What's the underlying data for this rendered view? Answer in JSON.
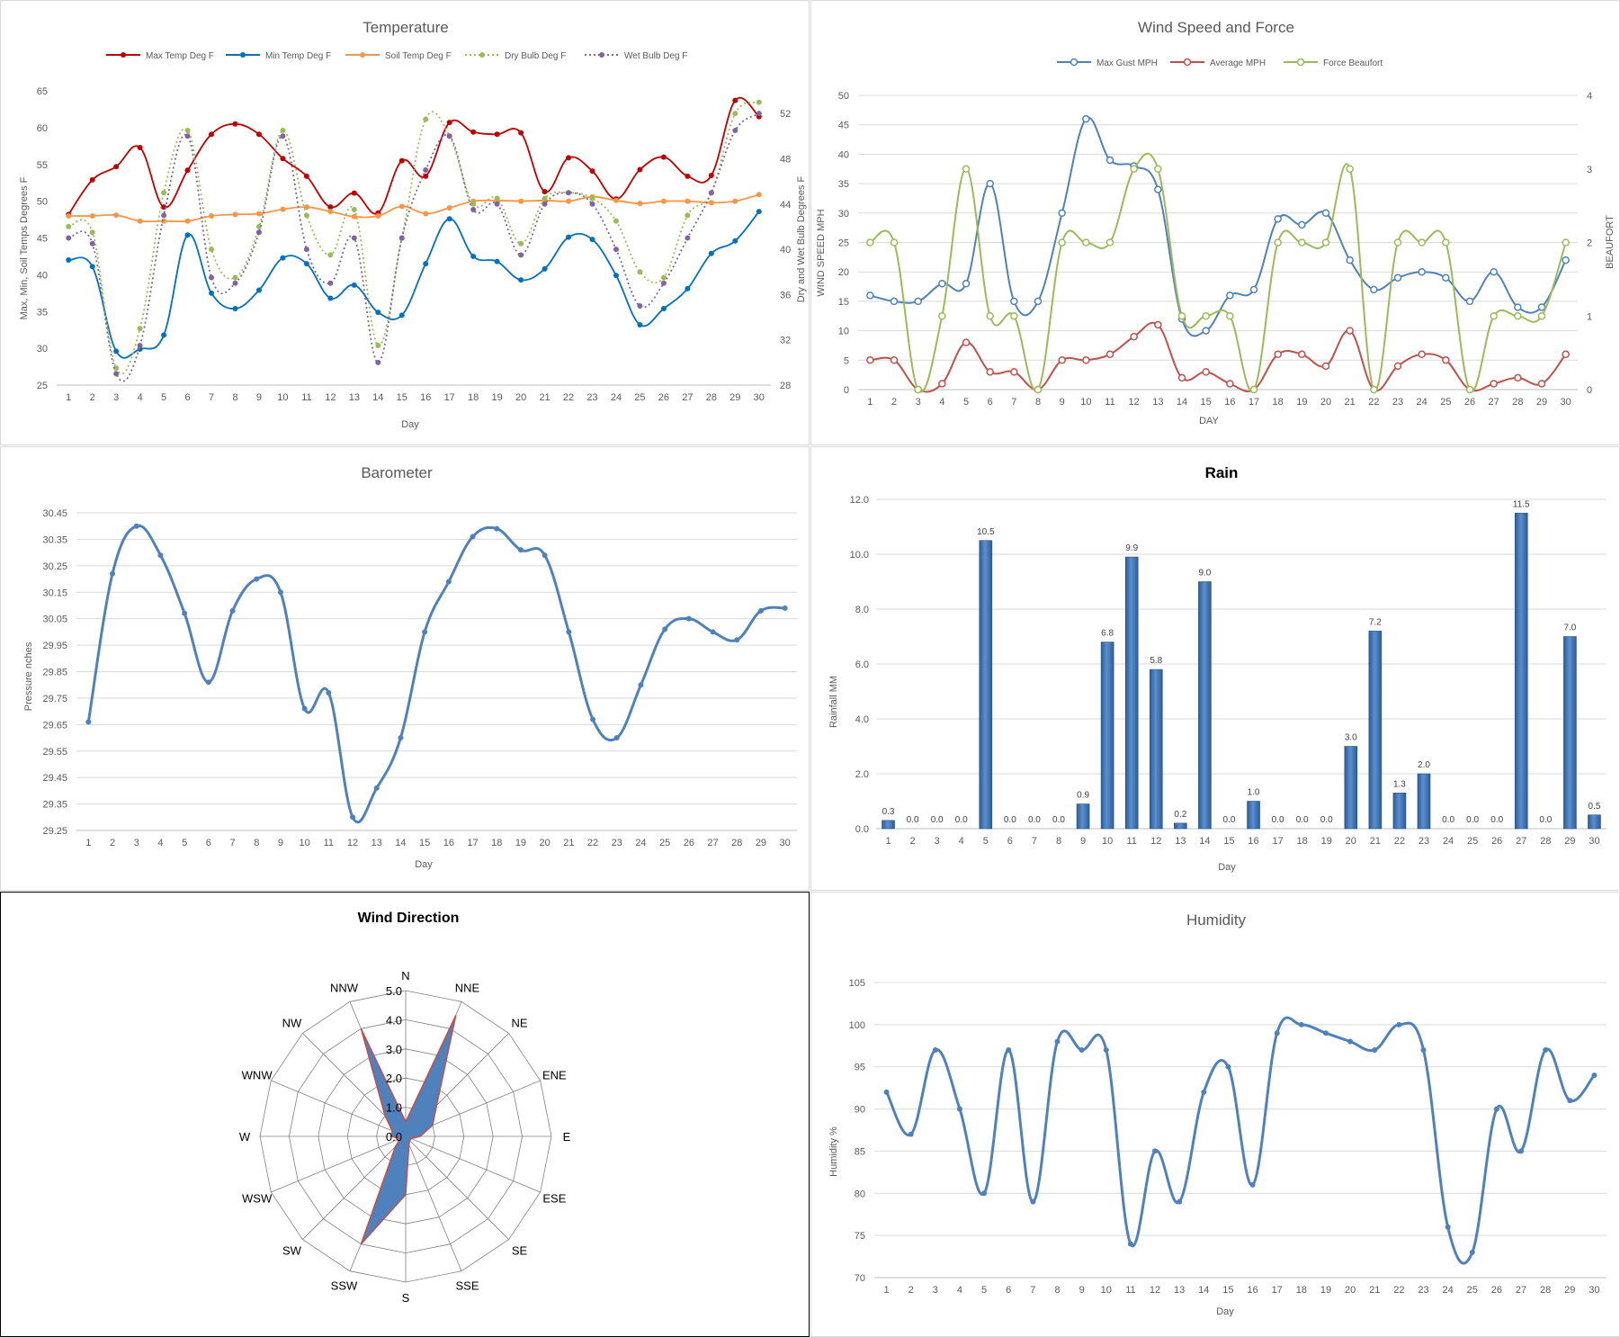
{
  "charts": {
    "temperature": {
      "title": "Temperature",
      "xlabel": "Day",
      "ylabel_left": "Max, Min, Soil Temps Degrees F",
      "ylabel_right": "Dry and Wet Bulb Degrees F"
    },
    "wind": {
      "title": "Wind Speed and Force",
      "xlabel": "DAY",
      "ylabel_left": "WIND SPEED MPH",
      "ylabel_right": "BEAUFORT"
    },
    "barometer": {
      "title": "Barometer",
      "xlabel": "Day",
      "ylabel": "Pressure nches"
    },
    "rain": {
      "title": "Rain",
      "xlabel": "Day",
      "ylabel": "Rainfall MM"
    },
    "wind_direction": {
      "title": "Wind Direction"
    },
    "humidity": {
      "title": "Humidity",
      "xlabel": "Day",
      "ylabel": "Humidity %"
    }
  },
  "chart_data": [
    {
      "id": "temperature",
      "type": "line",
      "title": "Temperature",
      "xlabel": "Day",
      "ylabel": "Max, Min, Soil Temps Degrees F",
      "y2label": "Dry and Wet Bulb Degrees F",
      "x": [
        1,
        2,
        3,
        4,
        5,
        6,
        7,
        8,
        9,
        10,
        11,
        12,
        13,
        14,
        15,
        16,
        17,
        18,
        19,
        20,
        21,
        22,
        23,
        24,
        25,
        26,
        27,
        28,
        29,
        30
      ],
      "ylim": [
        25,
        65
      ],
      "yticks": [
        25,
        30,
        35,
        40,
        45,
        50,
        55,
        60,
        65
      ],
      "y2lim": [
        28,
        54
      ],
      "y2ticks": [
        28,
        32,
        36,
        40,
        44,
        48,
        52
      ],
      "legend": "top",
      "grid": false,
      "series": [
        {
          "name": "Max Temp Deg F",
          "axis": "left",
          "color": "#c00000",
          "dash": false,
          "values": [
            48.2,
            52.9,
            54.7,
            57.3,
            49.2,
            54.2,
            59.1,
            60.5,
            59.1,
            55.8,
            53.4,
            49.2,
            51.1,
            48.4,
            55.5,
            53.4,
            60.7,
            59.4,
            59.1,
            59.3,
            51.3,
            55.9,
            54.1,
            50.3,
            54.3,
            56.0,
            53.4,
            53.5,
            63.7,
            61.5
          ]
        },
        {
          "name": "Min Temp Deg F",
          "axis": "left",
          "color": "#0070c0",
          "dash": false,
          "values": [
            42.0,
            41.1,
            29.6,
            29.9,
            31.8,
            45.4,
            37.5,
            35.4,
            37.9,
            42.3,
            41.5,
            36.8,
            38.6,
            34.9,
            34.5,
            41.5,
            47.6,
            42.5,
            41.8,
            39.3,
            40.8,
            45.1,
            44.8,
            39.9,
            33.2,
            35.4,
            38.1,
            42.9,
            44.6,
            48.6
          ]
        },
        {
          "name": "Soil Temp Deg F",
          "axis": "left",
          "color": "#f79646",
          "dash": false,
          "values": [
            48.0,
            48.0,
            48.1,
            47.3,
            47.3,
            47.3,
            48.0,
            48.2,
            48.3,
            48.9,
            49.2,
            48.6,
            47.9,
            48.0,
            49.3,
            48.3,
            49.1,
            50.0,
            50.1,
            50.0,
            50.1,
            50.0,
            50.6,
            50.1,
            49.7,
            50.0,
            50.0,
            49.8,
            50.0,
            50.9
          ]
        },
        {
          "name": "Dry Bulb Deg F",
          "axis": "right",
          "color": "#9bbb59",
          "dash": true,
          "values": [
            42.0,
            41.5,
            29.5,
            33.0,
            45.0,
            50.5,
            40.0,
            37.5,
            42.0,
            50.5,
            43.0,
            39.5,
            43.5,
            31.5,
            41.0,
            51.5,
            50.0,
            44.0,
            44.5,
            40.5,
            44.5,
            45.0,
            44.5,
            42.5,
            38.0,
            37.5,
            43.0,
            45.0,
            52.0,
            53.0
          ]
        },
        {
          "name": "Wet Bulb Deg F",
          "axis": "right",
          "color": "#8064a2",
          "dash": true,
          "values": [
            41.0,
            40.5,
            29.0,
            31.5,
            43.0,
            50.0,
            37.5,
            37.0,
            41.5,
            50.0,
            40.0,
            37.0,
            41.0,
            30.0,
            41.0,
            47.0,
            50.0,
            43.5,
            44.0,
            39.5,
            44.0,
            45.0,
            44.0,
            40.0,
            35.0,
            37.0,
            41.0,
            45.0,
            50.5,
            52.0
          ]
        }
      ]
    },
    {
      "id": "wind",
      "type": "line",
      "title": "Wind Speed and Force",
      "xlabel": "DAY",
      "ylabel": "WIND SPEED MPH",
      "y2label": "BEAUFORT",
      "x": [
        1,
        2,
        3,
        4,
        5,
        6,
        7,
        8,
        9,
        10,
        11,
        12,
        13,
        14,
        15,
        16,
        17,
        18,
        19,
        20,
        21,
        22,
        23,
        24,
        25,
        26,
        27,
        28,
        29,
        30
      ],
      "ylim": [
        0,
        50
      ],
      "yticks": [
        0,
        5,
        10,
        15,
        20,
        25,
        30,
        35,
        40,
        45,
        50
      ],
      "y2lim": [
        0,
        4
      ],
      "y2ticks": [
        0,
        1,
        2,
        3,
        4
      ],
      "legend": "top",
      "grid": true,
      "series": [
        {
          "name": "Max Gust MPH",
          "axis": "left",
          "color": "#4f81bd",
          "values": [
            16,
            15,
            15,
            18,
            18,
            35,
            15,
            15,
            30,
            46,
            39,
            38,
            34,
            12,
            10,
            16,
            17,
            29,
            28,
            30,
            22,
            17,
            19,
            20,
            19,
            15,
            20,
            14,
            14,
            22
          ]
        },
        {
          "name": "Average MPH",
          "axis": "left",
          "color": "#c0504d",
          "values": [
            5,
            5,
            0,
            1,
            8,
            3,
            3,
            0,
            5,
            5,
            6,
            9,
            11,
            2,
            3,
            1,
            0,
            6,
            6,
            4,
            10,
            0,
            4,
            6,
            5,
            0,
            1,
            2,
            1,
            6
          ]
        },
        {
          "name": "Force Beaufort",
          "axis": "right",
          "color": "#9bbb59",
          "values": [
            2,
            2,
            0,
            1,
            3,
            1,
            1,
            0,
            2,
            2,
            2,
            3,
            3,
            1,
            1,
            1,
            0,
            2,
            2,
            2,
            3,
            0,
            2,
            2,
            2,
            0,
            1,
            1,
            1,
            2
          ]
        }
      ]
    },
    {
      "id": "barometer",
      "type": "line",
      "title": "Barometer",
      "xlabel": "Day",
      "ylabel": "Pressure nches",
      "x": [
        1,
        2,
        3,
        4,
        5,
        6,
        7,
        8,
        9,
        10,
        11,
        12,
        13,
        14,
        15,
        16,
        17,
        18,
        19,
        20,
        21,
        22,
        23,
        24,
        25,
        26,
        27,
        28,
        29,
        30
      ],
      "ylim": [
        29.25,
        30.45
      ],
      "yticks": [
        29.25,
        29.35,
        29.45,
        29.55,
        29.65,
        29.75,
        29.85,
        29.95,
        30.05,
        30.15,
        30.25,
        30.35,
        30.45
      ],
      "grid": true,
      "series": [
        {
          "name": "",
          "color": "#4f81bd",
          "values": [
            29.66,
            30.22,
            30.4,
            30.29,
            30.07,
            29.81,
            30.08,
            30.2,
            30.15,
            29.71,
            29.77,
            29.3,
            29.41,
            29.6,
            30.0,
            30.19,
            30.36,
            30.39,
            30.31,
            30.29,
            30.0,
            29.67,
            29.6,
            29.8,
            30.01,
            30.05,
            30.0,
            29.97,
            30.08,
            30.09
          ]
        }
      ]
    },
    {
      "id": "rain",
      "type": "bar",
      "title": "Rain",
      "xlabel": "Day",
      "ylabel": "Rainfall MM",
      "categories": [
        "1",
        "2",
        "3",
        "4",
        "5",
        "6",
        "7",
        "8",
        "9",
        "10",
        "11",
        "12",
        "13",
        "14",
        "15",
        "16",
        "17",
        "18",
        "19",
        "20",
        "21",
        "22",
        "23",
        "24",
        "25",
        "26",
        "27",
        "28",
        "29",
        "30"
      ],
      "values": [
        0.3,
        0,
        0,
        0,
        10.5,
        0,
        0,
        0,
        0.9,
        6.8,
        9.9,
        5.8,
        0.2,
        9.0,
        0,
        1.0,
        0,
        0,
        0,
        3.0,
        7.2,
        1.3,
        2.0,
        0,
        0,
        0,
        11.5,
        0,
        7.0,
        0.5
      ],
      "value_labels": [
        "0.3",
        "0.0",
        "0.0",
        "0.0",
        "10.5",
        "0.0",
        "0.0",
        "0.0",
        "0.9",
        "6.8",
        "9.9",
        "5.8",
        "0.2",
        "9.0",
        "0.0",
        "1.0",
        "0.0",
        "0.0",
        "0.0",
        "3.0",
        "7.2",
        "1.3",
        "2.0",
        "0.0",
        "0.0",
        "0.0",
        "11.5",
        "0.0",
        "7.0",
        "0.5"
      ],
      "ylim": [
        0,
        12
      ],
      "yticks": [
        "0.0",
        "2.0",
        "4.0",
        "6.0",
        "8.0",
        "10.0",
        "12.0"
      ],
      "grid": true,
      "color": "#4f81bd"
    },
    {
      "id": "wind_direction",
      "type": "radar",
      "title": "Wind Direction",
      "categories": [
        "N",
        "NNE",
        "NE",
        "ENE",
        "E",
        "ESE",
        "SE",
        "SSE",
        "S",
        "SSW",
        "SW",
        "WSW",
        "W",
        "WNW",
        "NW",
        "NNW"
      ],
      "values": [
        0.5,
        4.5,
        1.5,
        1.0,
        0.5,
        0.2,
        0.2,
        0.3,
        2.0,
        4.0,
        0.5,
        0.2,
        0.5,
        0.5,
        1.0,
        4.0
      ],
      "rlim": [
        0,
        5
      ],
      "rticks": [
        "0.0",
        "1.0",
        "2.0",
        "3.0",
        "4.0",
        "5.0"
      ],
      "fill_color": "#4f81bd",
      "line_color": "#c0504d"
    },
    {
      "id": "humidity",
      "type": "line",
      "title": "Humidity",
      "xlabel": "Day",
      "ylabel": "Humidity %",
      "x": [
        1,
        2,
        3,
        4,
        5,
        6,
        7,
        8,
        9,
        10,
        11,
        12,
        13,
        14,
        15,
        16,
        17,
        18,
        19,
        20,
        21,
        22,
        23,
        24,
        25,
        26,
        27,
        28,
        29,
        30
      ],
      "ylim": [
        70,
        105
      ],
      "yticks": [
        70,
        75,
        80,
        85,
        90,
        95,
        100,
        105
      ],
      "grid": true,
      "series": [
        {
          "name": "",
          "color": "#4f81bd",
          "values": [
            92,
            87,
            97,
            90,
            80,
            97,
            79,
            98,
            97,
            97,
            74,
            85,
            79,
            92,
            95,
            81,
            99,
            100,
            99,
            98,
            97,
            100,
            97,
            76,
            73,
            90,
            85,
            97,
            91,
            94
          ]
        }
      ]
    }
  ]
}
